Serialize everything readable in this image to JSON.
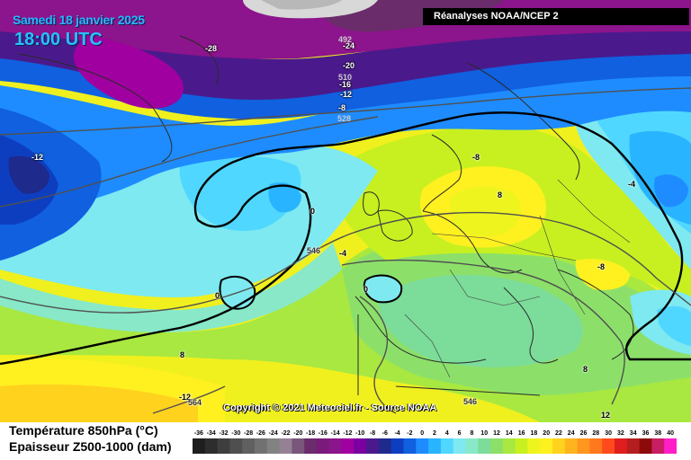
{
  "header": {
    "date": "Samedi 18 janvier 2025",
    "time": "18:00 UTC"
  },
  "source": "Réanalyses NOAA/NCEP 2",
  "copyright": "Copyright © 2021 Meteociel.fr - Source NOAA",
  "legend": {
    "title_temperature": "Température 850hPa (°C)",
    "title_thickness": "Epaisseur Z500-1000 (dam)",
    "scale_values": [
      "-36",
      "-34",
      "-32",
      "-30",
      "-28",
      "-26",
      "-24",
      "-22",
      "-20",
      "-18",
      "-16",
      "-14",
      "-12",
      "-10",
      "-8",
      "-6",
      "-4",
      "-2",
      "0",
      "2",
      "4",
      "6",
      "8",
      "10",
      "12",
      "14",
      "16",
      "18",
      "20",
      "22",
      "24",
      "26",
      "28",
      "30",
      "32",
      "34",
      "36",
      "38",
      "40"
    ],
    "scale_colors": [
      "#1e1e1e",
      "#2d2d2d",
      "#3e3e3e",
      "#4f4f4f",
      "#606060",
      "#717171",
      "#828282",
      "#948294",
      "#7a567a",
      "#6a2c6a",
      "#7a1a7a",
      "#8c148c",
      "#a000a0",
      "#7a00a0",
      "#4a1a8c",
      "#1e2a8c",
      "#0e3ec0",
      "#1060e0",
      "#1e8cff",
      "#28b4ff",
      "#50d7ff",
      "#7ee9f0",
      "#88e8c8",
      "#7cdc9a",
      "#8ce06a",
      "#a8e840",
      "#c8f020",
      "#eef41e",
      "#fff020",
      "#ffd21e",
      "#ffb41e",
      "#ff961e",
      "#ff781e",
      "#ff4a1e",
      "#e01e1e",
      "#b41e1e",
      "#8c0a0a",
      "#c81e64",
      "#ff1ec8"
    ]
  },
  "isotherm_labels": [
    {
      "text": "-28"
    },
    {
      "text": "-24"
    },
    {
      "text": "-20"
    },
    {
      "text": "-16"
    },
    {
      "text": "-12"
    },
    {
      "text": "-8"
    },
    {
      "text": "-12"
    },
    {
      "text": "-4"
    },
    {
      "text": "0"
    },
    {
      "text": "0"
    },
    {
      "text": "0"
    },
    {
      "text": "-4"
    },
    {
      "text": "-8"
    },
    {
      "text": "-8"
    },
    {
      "text": "8"
    },
    {
      "text": "8"
    },
    {
      "text": "8"
    },
    {
      "text": "-12"
    },
    {
      "text": "12"
    }
  ],
  "thickness_labels": [
    {
      "text": "492"
    },
    {
      "text": "510"
    },
    {
      "text": "528"
    },
    {
      "text": "546"
    },
    {
      "text": "546"
    },
    {
      "text": "564"
    }
  ],
  "colors": {
    "freezing_line": "#000000",
    "thickness_line": "#505050",
    "coastline": "#2a2a2a"
  }
}
